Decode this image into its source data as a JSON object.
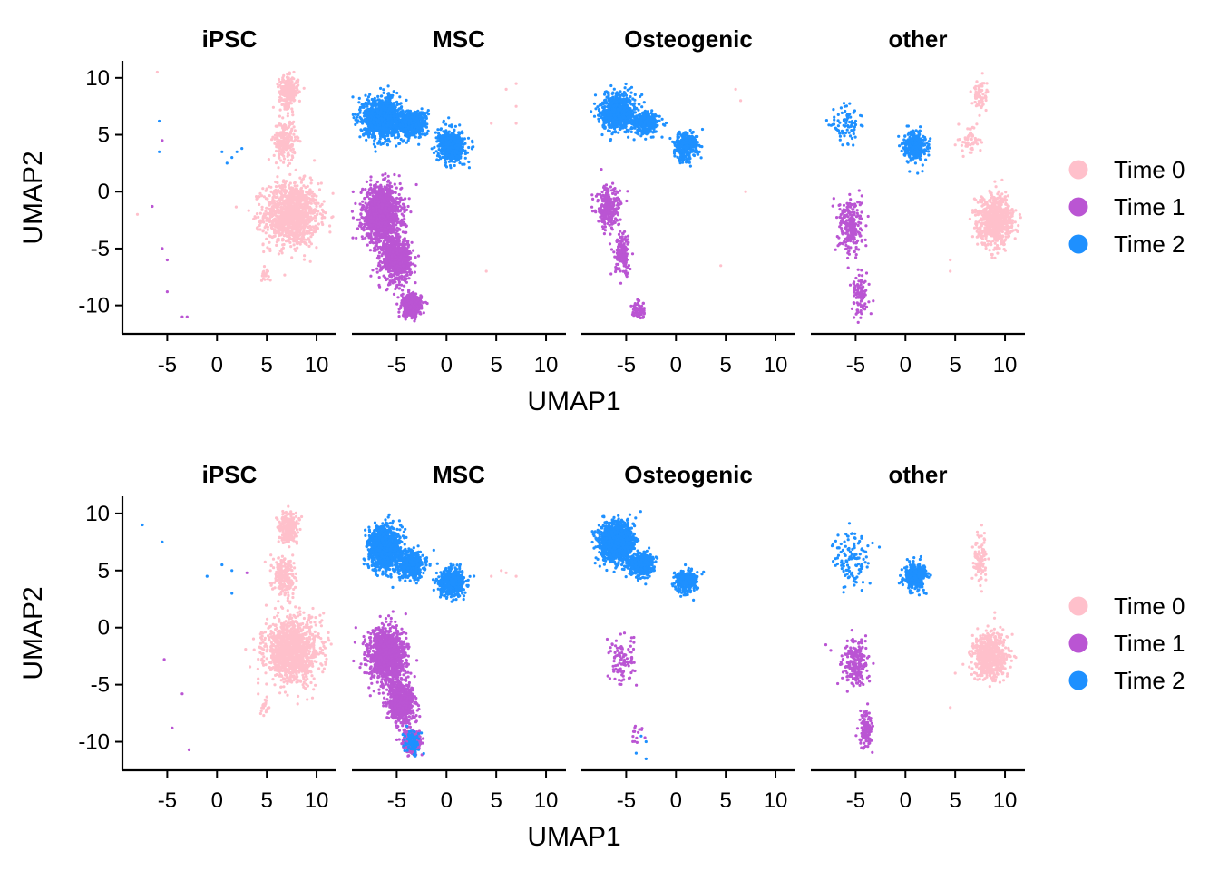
{
  "chart_data": [
    {
      "type": "scatter",
      "xlabel": "UMAP1",
      "ylabel": "UMAP2",
      "facets": [
        "iPSC",
        "MSC",
        "Osteogenic",
        "other"
      ],
      "xlim": [
        -9.5,
        12
      ],
      "ylim": [
        -12.5,
        11.5
      ],
      "xticks": [
        -5,
        0,
        5,
        10
      ],
      "xtick_labels": [
        "-5",
        "0",
        "5",
        "10"
      ],
      "yticks": [
        10,
        5,
        0,
        -5,
        -10
      ],
      "ytick_labels": [
        "10",
        "5",
        "0",
        "-5",
        "-10"
      ],
      "legend": [
        "Time 0",
        "Time 1",
        "Time 2"
      ],
      "colors": {
        "Time 0": "#FFC0CB",
        "Time 1": "#BA55D3",
        "Time 2": "#1E90FF"
      },
      "legend_position": "right",
      "panels": [
        {
          "facet": "iPSC",
          "series": [
            {
              "name": "Time 0",
              "clusters": [
                {
                  "cx": 7.5,
                  "cy": -2,
                  "sx": 2.3,
                  "sy": 2.3,
                  "n": 1200
                },
                {
                  "cx": 7.2,
                  "cy": 8.8,
                  "sx": 0.8,
                  "sy": 1.1,
                  "n": 260
                },
                {
                  "cx": 6.8,
                  "cy": 4.5,
                  "sx": 0.9,
                  "sy": 1.5,
                  "n": 220
                },
                {
                  "cx": 4.8,
                  "cy": -7.2,
                  "sx": 0.3,
                  "sy": 0.6,
                  "n": 20
                }
              ],
              "points": [
                [
                  -8,
                  -2
                ],
                [
                  -6,
                  10.5
                ]
              ]
            },
            {
              "name": "Time 1",
              "clusters": [],
              "points": [
                [
                  -5.5,
                  4.5
                ],
                [
                  -5.5,
                  -5
                ],
                [
                  -5,
                  -6
                ],
                [
                  -5,
                  -8.8
                ],
                [
                  -3.5,
                  -11
                ],
                [
                  -3,
                  -11
                ],
                [
                  -6.5,
                  -1.3
                ]
              ]
            },
            {
              "name": "Time 2",
              "clusters": [],
              "points": [
                [
                  -5.8,
                  6.2
                ],
                [
                  -5.8,
                  3.5
                ],
                [
                  0.5,
                  3.5
                ],
                [
                  1,
                  2.5
                ],
                [
                  1.5,
                  3
                ],
                [
                  2,
                  3.5
                ],
                [
                  2.5,
                  3.8
                ]
              ]
            }
          ]
        },
        {
          "facet": "MSC",
          "series": [
            {
              "name": "Time 1",
              "clusters": [
                {
                  "cx": -6.5,
                  "cy": -2,
                  "sx": 1.6,
                  "sy": 2.0,
                  "n": 1300
                },
                {
                  "cx": -5,
                  "cy": -6,
                  "sx": 1.2,
                  "sy": 1.6,
                  "n": 700
                },
                {
                  "cx": -3.5,
                  "cy": -10,
                  "sx": 0.8,
                  "sy": 0.8,
                  "n": 500
                }
              ],
              "points": []
            },
            {
              "name": "Time 2",
              "clusters": [
                {
                  "cx": -6.5,
                  "cy": 6.5,
                  "sx": 1.5,
                  "sy": 1.4,
                  "n": 1200
                },
                {
                  "cx": -3.5,
                  "cy": 6,
                  "sx": 1.2,
                  "sy": 0.9,
                  "n": 600
                },
                {
                  "cx": 0.5,
                  "cy": 4,
                  "sx": 1.1,
                  "sy": 1.1,
                  "n": 600
                }
              ],
              "points": []
            },
            {
              "name": "Time 0",
              "clusters": [],
              "points": [
                [
                  4.5,
                  6
                ],
                [
                  6,
                  9
                ],
                [
                  7,
                  9.5
                ],
                [
                  7,
                  7.5
                ],
                [
                  7,
                  6
                ],
                [
                  4,
                  -7
                ]
              ]
            }
          ]
        },
        {
          "facet": "Osteogenic",
          "series": [
            {
              "name": "Time 2",
              "clusters": [
                {
                  "cx": -5.8,
                  "cy": 7,
                  "sx": 1.4,
                  "sy": 1.3,
                  "n": 800
                },
                {
                  "cx": -3,
                  "cy": 6,
                  "sx": 1.1,
                  "sy": 0.8,
                  "n": 300
                },
                {
                  "cx": 1,
                  "cy": 4,
                  "sx": 1.0,
                  "sy": 1.0,
                  "n": 350
                }
              ],
              "points": []
            },
            {
              "name": "Time 1",
              "clusters": [
                {
                  "cx": -6.8,
                  "cy": -1.5,
                  "sx": 1.0,
                  "sy": 1.5,
                  "n": 250
                },
                {
                  "cx": -5.3,
                  "cy": -5.5,
                  "sx": 0.7,
                  "sy": 1.5,
                  "n": 150
                },
                {
                  "cx": -3.7,
                  "cy": -10.5,
                  "sx": 0.6,
                  "sy": 0.6,
                  "n": 60
                }
              ],
              "points": []
            },
            {
              "name": "Time 0",
              "clusters": [],
              "points": [
                [
                  6,
                  9
                ],
                [
                  6.5,
                  8
                ],
                [
                  7,
                  0
                ],
                [
                  4.5,
                  -6.5
                ]
              ]
            }
          ]
        },
        {
          "facet": "other",
          "series": [
            {
              "name": "Time 0",
              "clusters": [
                {
                  "cx": 9,
                  "cy": -2.5,
                  "sx": 1.5,
                  "sy": 1.8,
                  "n": 700
                },
                {
                  "cx": 7.5,
                  "cy": 8.5,
                  "sx": 0.6,
                  "sy": 1.2,
                  "n": 80
                },
                {
                  "cx": 6.5,
                  "cy": 4.5,
                  "sx": 0.8,
                  "sy": 1.0,
                  "n": 60
                }
              ],
              "points": [
                [
                  4.5,
                  -7
                ],
                [
                  4.5,
                  -6
                ]
              ]
            },
            {
              "name": "Time 1",
              "clusters": [
                {
                  "cx": -5.5,
                  "cy": -3,
                  "sx": 1.0,
                  "sy": 2.0,
                  "n": 250
                },
                {
                  "cx": -4.5,
                  "cy": -9,
                  "sx": 0.7,
                  "sy": 1.5,
                  "n": 100
                }
              ],
              "points": []
            },
            {
              "name": "Time 2",
              "clusters": [
                {
                  "cx": 1,
                  "cy": 4,
                  "sx": 0.9,
                  "sy": 1.0,
                  "n": 350
                },
                {
                  "cx": -6,
                  "cy": 6,
                  "sx": 1.2,
                  "sy": 1.4,
                  "n": 80
                }
              ],
              "points": []
            }
          ]
        }
      ]
    },
    {
      "type": "scatter",
      "xlabel": "UMAP1",
      "ylabel": "UMAP2",
      "facets": [
        "iPSC",
        "MSC",
        "Osteogenic",
        "other"
      ],
      "xlim": [
        -9.5,
        12
      ],
      "ylim": [
        -12.5,
        11.5
      ],
      "xticks": [
        -5,
        0,
        5,
        10
      ],
      "xtick_labels": [
        "-5",
        "0",
        "5",
        "10"
      ],
      "yticks": [
        10,
        5,
        0,
        -5,
        -10
      ],
      "ytick_labels": [
        "10",
        "5",
        "0",
        "-5",
        "-10"
      ],
      "legend": [
        "Time 0",
        "Time 1",
        "Time 2"
      ],
      "colors": {
        "Time 0": "#FFC0CB",
        "Time 1": "#BA55D3",
        "Time 2": "#1E90FF"
      },
      "legend_position": "right",
      "panels": [
        {
          "facet": "iPSC",
          "series": [
            {
              "name": "Time 0",
              "clusters": [
                {
                  "cx": 7.5,
                  "cy": -2,
                  "sx": 2.2,
                  "sy": 2.3,
                  "n": 1200
                },
                {
                  "cx": 7.2,
                  "cy": 8.8,
                  "sx": 0.8,
                  "sy": 1.1,
                  "n": 260
                },
                {
                  "cx": 6.8,
                  "cy": 4.5,
                  "sx": 0.9,
                  "sy": 1.5,
                  "n": 220
                },
                {
                  "cx": 4.8,
                  "cy": -7,
                  "sx": 0.3,
                  "sy": 0.6,
                  "n": 20
                }
              ],
              "points": []
            },
            {
              "name": "Time 2",
              "clusters": [],
              "points": [
                [
                  -7.5,
                  9
                ],
                [
                  -5.5,
                  7.5
                ],
                [
                  -1,
                  4.5
                ],
                [
                  0.5,
                  5.5
                ],
                [
                  1.5,
                  5
                ],
                [
                  1.5,
                  3
                ]
              ]
            },
            {
              "name": "Time 1",
              "clusters": [],
              "points": [
                [
                  3,
                  4.8
                ],
                [
                  -5.3,
                  -2.8
                ],
                [
                  -3.5,
                  -5.8
                ],
                [
                  -4.5,
                  -8.8
                ],
                [
                  -2.8,
                  -10.7
                ]
              ]
            }
          ]
        },
        {
          "facet": "MSC",
          "series": [
            {
              "name": "Time 1",
              "clusters": [
                {
                  "cx": -6,
                  "cy": -2.5,
                  "sx": 1.5,
                  "sy": 2.0,
                  "n": 1300
                },
                {
                  "cx": -4.5,
                  "cy": -6.5,
                  "sx": 1.1,
                  "sy": 1.5,
                  "n": 700
                },
                {
                  "cx": -3.5,
                  "cy": -10,
                  "sx": 0.7,
                  "sy": 0.7,
                  "n": 400
                }
              ],
              "points": []
            },
            {
              "name": "Time 2",
              "clusters": [
                {
                  "cx": -6.2,
                  "cy": 7,
                  "sx": 1.3,
                  "sy": 1.6,
                  "n": 1000
                },
                {
                  "cx": -3.5,
                  "cy": 5.5,
                  "sx": 1.1,
                  "sy": 0.9,
                  "n": 500
                },
                {
                  "cx": 0.5,
                  "cy": 4,
                  "sx": 1.1,
                  "sy": 1.0,
                  "n": 500
                },
                {
                  "cx": -3.5,
                  "cy": -10,
                  "sx": 0.7,
                  "sy": 0.9,
                  "n": 80
                }
              ],
              "points": []
            },
            {
              "name": "Time 0",
              "clusters": [],
              "points": [
                [
                  4.5,
                  4.5
                ],
                [
                  5.5,
                  5
                ],
                [
                  6,
                  4.8
                ],
                [
                  7,
                  4.5
                ]
              ]
            }
          ]
        },
        {
          "facet": "Osteogenic",
          "series": [
            {
              "name": "Time 2",
              "clusters": [
                {
                  "cx": -6,
                  "cy": 7.5,
                  "sx": 1.3,
                  "sy": 1.4,
                  "n": 1500
                },
                {
                  "cx": -3.5,
                  "cy": 5.5,
                  "sx": 1.0,
                  "sy": 0.8,
                  "n": 400
                },
                {
                  "cx": 1,
                  "cy": 4,
                  "sx": 0.9,
                  "sy": 0.8,
                  "n": 350
                }
              ],
              "points": [
                [
                  -3.5,
                  -9.5
                ],
                [
                  -3,
                  -10
                ],
                [
                  -4,
                  -11
                ],
                [
                  -3,
                  -11.5
                ]
              ]
            },
            {
              "name": "Time 1",
              "clusters": [
                {
                  "cx": -5.5,
                  "cy": -3,
                  "sx": 1.0,
                  "sy": 1.8,
                  "n": 100
                },
                {
                  "cx": -4,
                  "cy": -9.5,
                  "sx": 0.6,
                  "sy": 0.8,
                  "n": 15
                }
              ],
              "points": []
            }
          ]
        },
        {
          "facet": "other",
          "series": [
            {
              "name": "Time 0",
              "clusters": [
                {
                  "cx": 8.5,
                  "cy": -2.5,
                  "sx": 1.4,
                  "sy": 1.7,
                  "n": 600
                },
                {
                  "cx": 7.5,
                  "cy": 6,
                  "sx": 0.6,
                  "sy": 2.0,
                  "n": 100
                }
              ],
              "points": [
                [
                  4.5,
                  -7
                ],
                [
                  5,
                  -4
                ]
              ]
            },
            {
              "name": "Time 2",
              "clusters": [
                {
                  "cx": 1,
                  "cy": 4.5,
                  "sx": 0.9,
                  "sy": 0.9,
                  "n": 350
                },
                {
                  "cx": -5.5,
                  "cy": 6,
                  "sx": 1.3,
                  "sy": 2.0,
                  "n": 120
                }
              ],
              "points": []
            },
            {
              "name": "Time 1",
              "clusters": [
                {
                  "cx": -5,
                  "cy": -3,
                  "sx": 1.0,
                  "sy": 1.8,
                  "n": 200
                },
                {
                  "cx": -4,
                  "cy": -9,
                  "sx": 0.6,
                  "sy": 1.3,
                  "n": 120
                }
              ],
              "points": [
                [
                  -8,
                  -1.5
                ],
                [
                  -7.5,
                  -2
                ]
              ]
            }
          ]
        }
      ]
    }
  ]
}
